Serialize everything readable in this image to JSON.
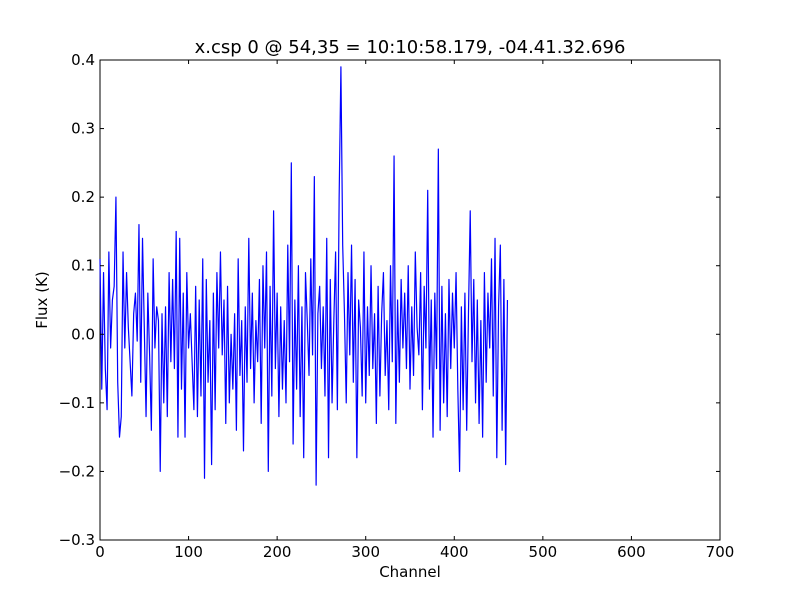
{
  "chart_data": {
    "type": "line",
    "title": "x.csp 0 @ 54,35 = 10:10:58.179, -04.41.32.696",
    "xlabel": "Channel",
    "ylabel": "Flux (K)",
    "xlim": [
      0,
      700
    ],
    "ylim": [
      -0.3,
      0.4
    ],
    "xticks": [
      0,
      100,
      200,
      300,
      400,
      500,
      600,
      700
    ],
    "yticks": [
      -0.3,
      -0.2,
      -0.1,
      0.0,
      0.1,
      0.2,
      0.3,
      0.4
    ],
    "xtick_labels": [
      "0",
      "100",
      "200",
      "300",
      "400",
      "500",
      "600",
      "700"
    ],
    "ytick_labels": [
      "−0.3",
      "−0.2",
      "−0.1",
      "0.0",
      "0.1",
      "0.2",
      "0.3",
      "0.4"
    ],
    "grid": false,
    "colors": {
      "line": "#0000ff",
      "axes": "#000000",
      "background": "#ffffff"
    },
    "series": [
      {
        "x_start": 0,
        "x_step": 2,
        "values": [
          0.11,
          -0.08,
          0.09,
          -0.05,
          -0.11,
          0.12,
          -0.02,
          0.05,
          0.07,
          0.2,
          -0.07,
          -0.15,
          -0.12,
          0.12,
          -0.02,
          0.09,
          0.01,
          -0.04,
          -0.09,
          0.03,
          0.06,
          -0.01,
          0.16,
          -0.07,
          0.14,
          0.01,
          -0.12,
          0.06,
          -0.03,
          -0.14,
          0.11,
          -0.02,
          0.04,
          0.02,
          -0.2,
          0.03,
          -0.1,
          0.04,
          -0.12,
          0.09,
          -0.04,
          0.08,
          -0.05,
          0.15,
          -0.15,
          0.14,
          -0.08,
          0.06,
          -0.15,
          0.09,
          -0.02,
          0.03,
          -0.04,
          -0.11,
          0.07,
          -0.12,
          0.05,
          -0.09,
          0.11,
          -0.21,
          0.08,
          -0.07,
          0.02,
          -0.19,
          0.06,
          -0.11,
          0.09,
          -0.02,
          0.12,
          -0.03,
          0.05,
          -0.13,
          0.07,
          -0.1,
          0.0,
          -0.08,
          0.03,
          -0.14,
          0.11,
          -0.06,
          0.02,
          -0.17,
          0.04,
          -0.07,
          0.14,
          -0.05,
          0.06,
          -0.1,
          0.02,
          -0.04,
          0.08,
          -0.13,
          0.1,
          -0.02,
          0.12,
          -0.2,
          0.07,
          -0.09,
          0.18,
          -0.05,
          0.06,
          -0.12,
          0.04,
          -0.08,
          0.02,
          -0.1,
          0.13,
          -0.04,
          0.25,
          -0.16,
          0.05,
          -0.08,
          0.1,
          -0.12,
          0.04,
          -0.18,
          0.09,
          0.02,
          -0.06,
          0.11,
          -0.03,
          0.23,
          -0.22,
          0.03,
          0.07,
          -0.05,
          0.04,
          -0.09,
          0.14,
          -0.18,
          0.08,
          -0.1,
          0.02,
          0.12,
          -0.11,
          0.2,
          0.39,
          0.13,
          0.03,
          -0.1,
          0.09,
          -0.03,
          0.13,
          -0.07,
          0.08,
          -0.18,
          0.05,
          0.01,
          -0.09,
          0.12,
          -0.1,
          0.04,
          -0.06,
          0.1,
          -0.05,
          0.03,
          -0.13,
          0.07,
          -0.09,
          0.03,
          0.09,
          -0.06,
          0.02,
          -0.11,
          0.1,
          -0.04,
          0.26,
          -0.13,
          0.05,
          -0.07,
          0.08,
          -0.02,
          0.06,
          -0.05,
          0.1,
          -0.08,
          0.04,
          -0.06,
          0.12,
          0.01,
          -0.03,
          0.09,
          -0.11,
          0.07,
          -0.02,
          0.21,
          -0.08,
          0.05,
          -0.15,
          0.06,
          -0.05,
          0.27,
          -0.14,
          0.07,
          -0.1,
          0.03,
          -0.12,
          0.08,
          -0.05,
          0.06,
          -0.02,
          0.09,
          -0.08,
          -0.2,
          0.04,
          -0.11,
          0.06,
          -0.14,
          0.03,
          0.18,
          -0.04,
          0.08,
          -0.1,
          0.05,
          -0.13,
          0.02,
          -0.15,
          0.09,
          -0.07,
          0.06,
          -0.02,
          0.11,
          -0.09,
          0.14,
          -0.18,
          0.04,
          0.13,
          -0.14,
          0.08,
          -0.19,
          0.05
        ],
        "values_note_placeholder": null
      }
    ]
  }
}
